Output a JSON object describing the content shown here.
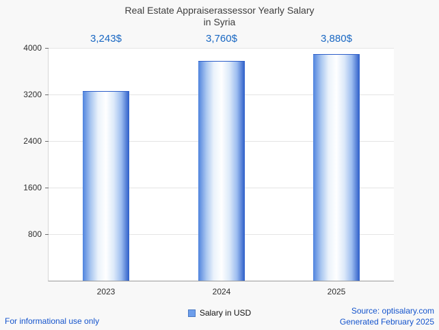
{
  "chart_data": {
    "type": "bar",
    "title": "Real Estate Appraiserassessor Yearly Salary",
    "subtitle": "in Syria",
    "categories": [
      "2023",
      "2024",
      "2025"
    ],
    "values": [
      3243,
      3760,
      3880
    ],
    "value_labels": [
      "3,243$",
      "3,760$",
      "3,880$"
    ],
    "ylim": [
      0,
      4000
    ],
    "yticks": [
      4000,
      3200,
      2400,
      1600,
      800
    ],
    "grid": true,
    "legend_position": "bottom",
    "legend": [
      {
        "label": "Salary in USD",
        "color": "#6d9eeb"
      }
    ],
    "colors": {
      "value_label": "#1766c2",
      "bar_gradient": [
        "#4f83de",
        "#a9c6f0",
        "#eaf2fb",
        "#ffffff",
        "#dce9f9",
        "#9dbdf0",
        "#2c5dc8"
      ],
      "bar_edge": "#2c5dc8"
    }
  },
  "footer": {
    "left": "For informational use only",
    "source": "Source: optisalary.com",
    "generated": "Generated February 2025"
  }
}
